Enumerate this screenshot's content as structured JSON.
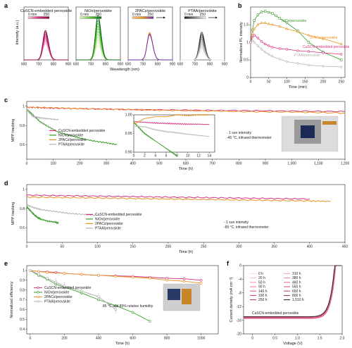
{
  "colors": {
    "cuscn": "#d6307e",
    "nio": "#3a9a2a",
    "pacz": "#e8921e",
    "ptaa": "#b0b0b0",
    "pacz_purple": "#6a2ab8"
  },
  "panels": {
    "a": {
      "label": "a"
    },
    "b": {
      "label": "b"
    },
    "c": {
      "label": "c"
    },
    "d": {
      "label": "d"
    },
    "e": {
      "label": "e"
    },
    "f": {
      "label": "f"
    }
  },
  "chart_data": [
    {
      "id": "a",
      "type": "line",
      "xlabel": "Wavelength (nm)",
      "ylabel": "Intensity (a.u.)",
      "subplots": [
        {
          "title": "CuSCN-embedded perovskite",
          "xlim": [
            600,
            900
          ],
          "xticks": [
            600,
            700,
            800,
            900
          ],
          "peak_nm": 745,
          "peak_start": 0.6,
          "peak_end": 1.12,
          "trend": "increase",
          "colorbar": [
            "0 min",
            "250"
          ],
          "colors": [
            "#f6c9dc",
            "#d6307e",
            "#8e0a45"
          ]
        },
        {
          "title": "NiOx/perovskite",
          "xlim": [
            600,
            900
          ],
          "xticks": [
            600,
            700,
            800,
            900
          ],
          "peak_nm": 748,
          "peak_start": 0.55,
          "peak_end": 1.7,
          "trend": "increase",
          "colorbar": [
            "0 min",
            "250"
          ],
          "colors": [
            "#dff5b8",
            "#5cc23a",
            "#0f6a1c"
          ]
        },
        {
          "title": "2PACz/perovskite",
          "xlim": [
            600,
            900
          ],
          "xticks": [
            600,
            700,
            800,
            900
          ],
          "peak_nm": 745,
          "peak_start": 1.05,
          "peak_end": 0.95,
          "trend": "decrease",
          "colorbar": [
            "0 min",
            "250"
          ],
          "colors": [
            "#f5c78a",
            "#e8921e",
            "#6a2ab8"
          ]
        },
        {
          "title": "PTAA/perovskite",
          "xlim": [
            600,
            900
          ],
          "xticks": [
            600,
            700,
            800,
            900
          ],
          "peak_nm": 745,
          "peak_start": 1.05,
          "peak_end": 0.35,
          "trend": "decrease",
          "colorbar": [
            "0 min",
            "250"
          ],
          "colors": [
            "#1a1a1a",
            "#888888",
            "#e8f5e0"
          ]
        }
      ]
    },
    {
      "id": "b",
      "type": "line",
      "xlabel": "Time (min)",
      "ylabel": "Normalized PL intensity",
      "xlim": [
        0,
        260
      ],
      "ylim": [
        0,
        2.0
      ],
      "xticks": [
        0,
        50,
        100,
        150,
        200,
        250
      ],
      "yticks": [
        0,
        0.5,
        1.0,
        1.5
      ],
      "series": [
        {
          "name": "NiOx/perovskite",
          "color": "#3a9a2a",
          "marker": "square",
          "x": [
            0,
            5,
            10,
            20,
            30,
            40,
            50,
            60,
            70,
            80,
            100,
            130,
            160,
            200,
            250
          ],
          "y": [
            1.0,
            1.35,
            1.62,
            1.78,
            1.86,
            1.88,
            1.85,
            1.82,
            1.75,
            1.68,
            1.55,
            1.32,
            1.0,
            0.72,
            0.5
          ]
        },
        {
          "name": "2PACz/perovskite",
          "color": "#e8921e",
          "marker": "triangle",
          "x": [
            0,
            5,
            10,
            20,
            30,
            40,
            50,
            60,
            80,
            100,
            130,
            160,
            200,
            250
          ],
          "y": [
            1.0,
            1.25,
            1.38,
            1.5,
            1.55,
            1.55,
            1.52,
            1.5,
            1.45,
            1.38,
            1.3,
            1.2,
            1.1,
            0.95
          ]
        },
        {
          "name": "CuSCN-embedded perovskite",
          "color": "#d6307e",
          "marker": "circle",
          "x": [
            0,
            5,
            10,
            20,
            30,
            40,
            50,
            60,
            80,
            100,
            130,
            160,
            200,
            250
          ],
          "y": [
            1.0,
            1.15,
            1.2,
            1.12,
            1.02,
            0.95,
            0.9,
            0.86,
            0.82,
            0.8,
            0.76,
            0.74,
            0.7,
            0.66
          ]
        },
        {
          "name": "PTAA/perovskite",
          "color": "#b0b0b0",
          "marker": "diamond",
          "x": [
            0,
            5,
            10,
            20,
            30,
            40,
            50,
            60,
            80,
            100,
            130,
            160,
            200,
            250
          ],
          "y": [
            1.0,
            1.05,
            1.0,
            0.9,
            0.8,
            0.72,
            0.66,
            0.6,
            0.52,
            0.45,
            0.4,
            0.35,
            0.32,
            0.3
          ]
        }
      ]
    },
    {
      "id": "c",
      "type": "line",
      "xlabel": "Time (h)",
      "ylabel": "MPP tracking",
      "xlim": [
        0,
        1200
      ],
      "ylim": [
        0.45,
        1.05
      ],
      "xticks": [
        0,
        100,
        200,
        300,
        400,
        500,
        600,
        700,
        800,
        900,
        1000,
        1100,
        1200
      ],
      "xtick_labels": [
        "0",
        "100",
        "200",
        "300",
        "400",
        "500",
        "600",
        "700",
        "800",
        "900",
        "1,000",
        "1,100",
        "1,200"
      ],
      "yticks": [
        0.6,
        0.8,
        1.0
      ],
      "annotation": [
        "- 1 sun intensity",
        "-45 °C, infrared thermometer"
      ],
      "series": [
        {
          "name": "CuSCN-embedded perovskite",
          "color": "#d6307e",
          "x": [
            0,
            50,
            100,
            200,
            300,
            400,
            600,
            800,
            1000,
            1200
          ],
          "y": [
            0.99,
            0.985,
            0.98,
            0.975,
            0.97,
            0.965,
            0.96,
            0.955,
            0.95,
            0.945
          ]
        },
        {
          "name": "NiOx/perovskite",
          "color": "#3a9a2a",
          "x": [
            0,
            20,
            50,
            80,
            120,
            160,
            200,
            250,
            300,
            340
          ],
          "y": [
            0.97,
            0.92,
            0.84,
            0.79,
            0.73,
            0.7,
            0.67,
            0.64,
            0.62,
            0.6
          ]
        },
        {
          "name": "2PACz/perovskite",
          "color": "#e8921e",
          "x": [
            0,
            100,
            200,
            400,
            600,
            800,
            1000,
            1200
          ],
          "y": [
            0.99,
            0.985,
            0.975,
            0.965,
            0.955,
            0.945,
            0.94,
            0.93
          ]
        },
        {
          "name": "PTAA/perovskite",
          "color": "#b0b0b0",
          "x": [
            0,
            5,
            10,
            15,
            20,
            30,
            50,
            80,
            120
          ],
          "y": [
            0.97,
            0.95,
            0.93,
            0.92,
            0.9,
            0.89,
            0.88,
            0.87,
            0.86
          ]
        }
      ],
      "inset": {
        "xlim": [
          0,
          15
        ],
        "ylim": [
          0.9,
          1.0
        ],
        "xticks": [
          0,
          2,
          4,
          6,
          8,
          10,
          12,
          14
        ],
        "yticks": [
          0.9,
          0.95,
          1.0
        ],
        "ytick_labels": [
          "0.90",
          "0.95",
          "1.00"
        ],
        "series": [
          {
            "name": "CuSCN-embedded perovskite",
            "color": "#d6307e",
            "x": [
              0,
              2,
              4,
              6,
              8,
              10,
              12,
              14
            ],
            "y": [
              0.982,
              0.98,
              0.978,
              0.977,
              0.976,
              0.975,
              0.975,
              0.974
            ]
          },
          {
            "name": "NiOx/perovskite",
            "color": "#3a9a2a",
            "x": [
              0,
              1,
              2,
              3,
              4,
              5,
              6,
              7,
              8
            ],
            "y": [
              0.98,
              0.965,
              0.95,
              0.94,
              0.93,
              0.92,
              0.91,
              0.9,
              0.89
            ]
          },
          {
            "name": "2PACz/perovskite",
            "color": "#e8921e",
            "x": [
              0,
              2,
              4,
              6,
              8,
              10,
              12,
              14
            ],
            "y": [
              0.975,
              0.99,
              0.995,
              0.995,
              1.0,
              0.998,
              1.0,
              1.0
            ]
          },
          {
            "name": "PTAA/perovskite",
            "color": "#b0b0b0",
            "x": [
              0,
              2,
              4,
              6,
              8,
              10,
              12,
              14
            ],
            "y": [
              0.97,
              0.968,
              0.96,
              0.955,
              0.952,
              0.948,
              0.945,
              0.942
            ]
          }
        ]
      }
    },
    {
      "id": "d",
      "type": "line",
      "xlabel": "Time (h)",
      "ylabel": "MPP tracking",
      "xlim": [
        0,
        450
      ],
      "ylim": [
        0.45,
        1.05
      ],
      "xticks": [
        0,
        50,
        100,
        150,
        200,
        250,
        300,
        350,
        400,
        450
      ],
      "yticks": [
        0.6,
        0.8,
        1.0
      ],
      "annotation": [
        "- 1 sun intensity",
        "-85 °C, infrared thermometer"
      ],
      "series": [
        {
          "name": "CuSCN-embedded perovskite",
          "color": "#d6307e",
          "x": [
            0,
            50,
            100,
            150,
            200,
            250,
            300,
            350,
            400
          ],
          "y": [
            0.94,
            0.935,
            0.93,
            0.925,
            0.92,
            0.915,
            0.91,
            0.905,
            0.9
          ]
        },
        {
          "name": "NiOx/perovskite",
          "color": "#3a9a2a",
          "x": [
            0,
            5,
            10,
            15,
            20,
            30,
            40,
            45
          ],
          "y": [
            0.82,
            0.78,
            0.74,
            0.71,
            0.69,
            0.67,
            0.66,
            0.65
          ]
        },
        {
          "name": "2PACz/perovskite",
          "color": "#e8921e",
          "x": [
            0,
            50,
            100,
            150,
            200,
            250,
            300,
            350,
            400,
            430
          ],
          "y": [
            0.92,
            0.915,
            0.91,
            0.905,
            0.9,
            0.895,
            0.89,
            0.885,
            0.88,
            0.875
          ]
        },
        {
          "name": "PTAA/perovskite",
          "color": "#b0b0b0",
          "x": [
            0,
            10,
            20,
            40,
            60,
            80,
            100
          ],
          "y": [
            0.84,
            0.81,
            0.79,
            0.77,
            0.75,
            0.74,
            0.73
          ]
        }
      ]
    },
    {
      "id": "e",
      "type": "line",
      "xlabel": "Time (h)",
      "ylabel": "Normalized efficiency",
      "xlim": [
        -20,
        1100
      ],
      "ylim": [
        0.35,
        1.05
      ],
      "xticks": [
        0,
        200,
        400,
        600,
        800,
        1000
      ],
      "yticks": [
        0.4,
        0.5,
        0.6,
        0.7,
        0.8,
        0.9,
        1.0
      ],
      "annotation": [
        "85 °C and 85% relative humidity"
      ],
      "series": [
        {
          "name": "CuSCN-embedded perovskite",
          "color": "#d6307e",
          "marker": "circle",
          "x": [
            0,
            50,
            100,
            150,
            200,
            300,
            400,
            500,
            600,
            700,
            800,
            900,
            1000
          ],
          "y": [
            1.0,
            0.99,
            0.985,
            0.98,
            0.97,
            0.96,
            0.95,
            0.945,
            0.94,
            0.93,
            0.92,
            0.915,
            0.9
          ]
        },
        {
          "name": "NiOx/perovskite",
          "color": "#3a9a2a",
          "marker": "circle",
          "x": [
            0,
            50,
            100,
            150,
            200,
            300,
            400,
            500,
            600,
            700
          ],
          "y": [
            1.0,
            0.95,
            0.91,
            0.86,
            0.83,
            0.77,
            0.7,
            0.64,
            0.57,
            0.48
          ]
        },
        {
          "name": "2PACz/perovskite",
          "color": "#e8921e",
          "marker": "circle",
          "x": [
            0,
            50,
            100,
            200,
            300,
            400,
            500,
            600,
            700,
            800,
            900,
            1000
          ],
          "y": [
            1.0,
            0.99,
            0.98,
            0.97,
            0.96,
            0.95,
            0.94,
            0.93,
            0.92,
            0.9,
            0.89,
            0.87
          ]
        },
        {
          "name": "PTAA/perovskite",
          "color": "#b0b0b0",
          "marker": "circle",
          "x": [
            0,
            50,
            100,
            150,
            200,
            300,
            400,
            500
          ],
          "y": [
            1.0,
            0.96,
            0.92,
            0.88,
            0.84,
            0.79,
            0.73,
            0.6
          ]
        }
      ]
    },
    {
      "id": "f",
      "type": "line",
      "xlabel": "Voltage (V)",
      "ylabel": "Current density (mA cm⁻²)",
      "xlim": [
        -0.2,
        2.0
      ],
      "ylim": [
        -20,
        0
      ],
      "xticks": [
        0,
        0.5,
        1.0,
        1.5,
        2.0
      ],
      "xtick_labels": [
        "0",
        "0.5",
        "1.0",
        "1.5",
        "2.0"
      ],
      "yticks": [
        -20,
        -16,
        -12,
        -8,
        -4,
        0
      ],
      "annotation": [
        "CuSCN-embedded perovskite"
      ],
      "series": [
        {
          "name": "0 h",
          "color": "#fbd4e2",
          "jsc": -15.6,
          "voc": 1.86
        },
        {
          "name": "20 h",
          "color": "#f6b3cc",
          "jsc": -15.55,
          "voc": 1.86
        },
        {
          "name": "50 h",
          "color": "#f093b5",
          "jsc": -15.5,
          "voc": 1.86
        },
        {
          "name": "90 h",
          "color": "#e8729d",
          "jsc": -15.45,
          "voc": 1.855
        },
        {
          "name": "140 h",
          "color": "#de5586",
          "jsc": -15.4,
          "voc": 1.855
        },
        {
          "name": "190 h",
          "color": "#d13a70",
          "jsc": -15.35,
          "voc": 1.85
        },
        {
          "name": "250 h",
          "color": "#c0285d",
          "jsc": -15.3,
          "voc": 1.85
        },
        {
          "name": "310 h",
          "color": "#f2a0bd",
          "jsc": -15.25,
          "voc": 1.85
        },
        {
          "name": "380 h",
          "color": "#e4859f",
          "jsc": -15.2,
          "voc": 1.845
        },
        {
          "name": "460 h",
          "color": "#d66c8b",
          "jsc": -15.15,
          "voc": 1.845
        },
        {
          "name": "550 h",
          "color": "#c45576",
          "jsc": -15.1,
          "voc": 1.84
        },
        {
          "name": "650 h",
          "color": "#a83f60",
          "jsc": -15.05,
          "voc": 1.84
        },
        {
          "name": "800 h",
          "color": "#8a2e4c",
          "jsc": -15.0,
          "voc": 1.835
        },
        {
          "name": "1,010 h",
          "color": "#1a1a1a",
          "jsc": -14.95,
          "voc": 1.83
        }
      ]
    }
  ]
}
